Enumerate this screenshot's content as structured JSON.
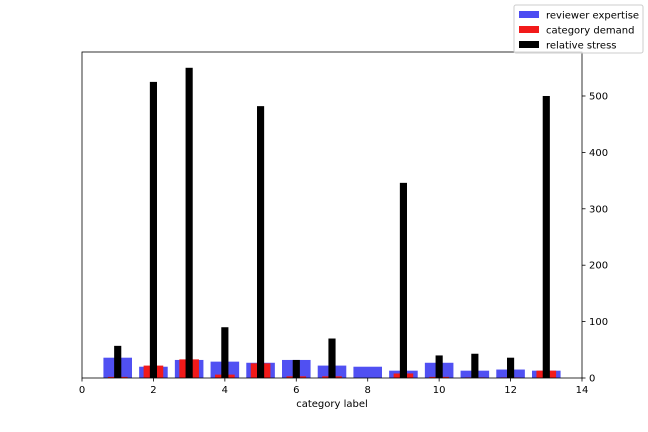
{
  "chart_data": {
    "type": "bar",
    "xlabel": "category label",
    "ylabel": "",
    "xlim": [
      0,
      14
    ],
    "ylim": [
      0,
      578
    ],
    "x_ticks": [
      0,
      2,
      4,
      6,
      8,
      10,
      12,
      14
    ],
    "y_ticks": [
      0,
      100,
      200,
      300,
      400,
      500
    ],
    "y_axis_side": "right",
    "grid": false,
    "legend_position": "top-right",
    "x": [
      1,
      2,
      3,
      4,
      5,
      6,
      7,
      8,
      9,
      10,
      11,
      12,
      13
    ],
    "series": [
      {
        "name": "reviewer expertise",
        "color": "#4c4cf2",
        "values": [
          36,
          20,
          32,
          29,
          27,
          32,
          22,
          20,
          13,
          27,
          13,
          15,
          13
        ]
      },
      {
        "name": "category demand",
        "color": "#f21a1a",
        "values": [
          2,
          22,
          33,
          6,
          26,
          3,
          3,
          0,
          8,
          2,
          1,
          1,
          13
        ]
      },
      {
        "name": "relative stress",
        "color": "#000000",
        "values": [
          57,
          525,
          550,
          90,
          482,
          32,
          70,
          0,
          346,
          40,
          43,
          36,
          500
        ]
      }
    ]
  }
}
